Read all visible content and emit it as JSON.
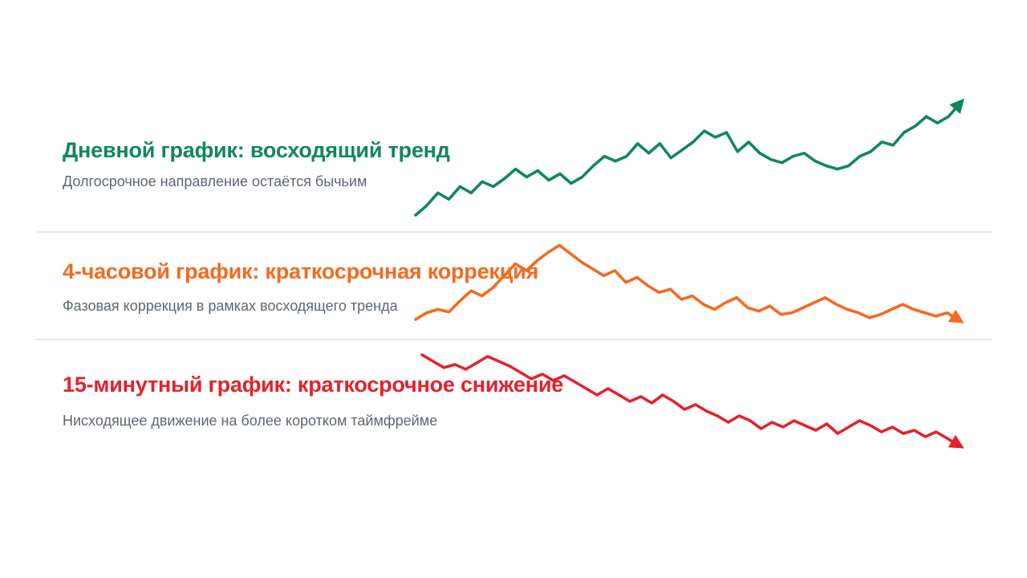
{
  "colors": {
    "green": "#12875a",
    "orange": "#f46a1f",
    "red": "#e5212b",
    "subtitle": "#5d6675",
    "divider": "#e3e6ec"
  },
  "rows": [
    {
      "title": "Дневной график: восходящий тренд",
      "subtitle": "Долгосрочное направление остаётся бычьим",
      "color": "#12875a"
    },
    {
      "title": "4-часовой график: краткосрочная коррекция",
      "subtitle": "Фазовая коррекция в рамках восходящего тренда",
      "color": "#f46a1f"
    },
    {
      "title": "15-минутный график: краткосрочное снижение",
      "subtitle": "Нисходящее движение на более коротком таймфрейме",
      "color": "#e5212b"
    }
  ],
  "chart_data": [
    {
      "type": "line",
      "trend": "up",
      "arrow": "up-right",
      "color": "#12875a",
      "values": [
        0,
        12,
        28,
        20,
        36,
        28,
        42,
        36,
        46,
        58,
        48,
        56,
        44,
        52,
        40,
        48,
        62,
        74,
        68,
        74,
        90,
        78,
        90,
        72,
        82,
        92,
        106,
        98,
        104,
        80,
        92,
        78,
        70,
        66,
        74,
        78,
        68,
        62,
        58,
        62,
        74,
        80,
        92,
        88,
        104,
        112,
        124,
        116,
        124,
        140
      ]
    },
    {
      "type": "line",
      "trend": "down",
      "arrow": "down-right",
      "color": "#f46a1f",
      "values": [
        0,
        8,
        12,
        9,
        22,
        34,
        28,
        38,
        52,
        66,
        58,
        70,
        80,
        88,
        78,
        68,
        60,
        52,
        58,
        44,
        50,
        40,
        32,
        36,
        24,
        28,
        18,
        12,
        20,
        26,
        14,
        10,
        16,
        6,
        8,
        14,
        20,
        26,
        18,
        12,
        8,
        2,
        6,
        12,
        18,
        12,
        8,
        4,
        8,
        0
      ]
    },
    {
      "type": "line",
      "trend": "down",
      "arrow": "down-right",
      "color": "#e5212b",
      "values": [
        112,
        104,
        96,
        100,
        94,
        102,
        110,
        104,
        98,
        90,
        82,
        88,
        80,
        86,
        78,
        70,
        62,
        70,
        62,
        54,
        60,
        52,
        62,
        54,
        44,
        50,
        42,
        36,
        28,
        36,
        30,
        20,
        28,
        22,
        30,
        24,
        18,
        26,
        14,
        22,
        30,
        24,
        16,
        22,
        14,
        18,
        10,
        16,
        8,
        0
      ]
    }
  ]
}
